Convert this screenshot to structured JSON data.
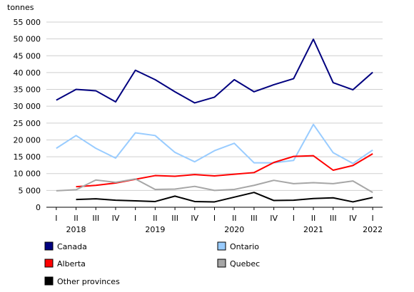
{
  "chart_data": {
    "type": "line",
    "ylabel": "tonnes",
    "ylim": [
      0,
      55000
    ],
    "yticks": [
      0,
      5000,
      10000,
      15000,
      20000,
      25000,
      30000,
      35000,
      40000,
      45000,
      50000,
      55000
    ],
    "ytick_labels": [
      "0",
      "5 000",
      "10 000",
      "15 000",
      "20 000",
      "25 000",
      "30 000",
      "35 000",
      "40 000",
      "45 000",
      "50 000",
      "55 000"
    ],
    "categories": [
      "I",
      "II",
      "III",
      "IV",
      "I",
      "II",
      "III",
      "IV",
      "I",
      "II",
      "III",
      "IV",
      "I",
      "II",
      "III",
      "IV",
      "I"
    ],
    "years": [
      {
        "label": "2018",
        "index": 1
      },
      {
        "label": "2019",
        "index": 5
      },
      {
        "label": "2020",
        "index": 9
      },
      {
        "label": "2021",
        "index": 13
      },
      {
        "label": "2022",
        "index": 16
      }
    ],
    "grid": true,
    "legend_position": "bottom",
    "series": [
      {
        "name": "Canada",
        "color": "#00007f",
        "values": [
          31800,
          35000,
          34600,
          31300,
          40700,
          37900,
          34300,
          31000,
          32700,
          37900,
          34300,
          36400,
          38200,
          49900,
          37000,
          34900,
          40100
        ]
      },
      {
        "name": "Ontario",
        "color": "#99ccff",
        "values": [
          17500,
          21300,
          17500,
          14600,
          22100,
          21300,
          16300,
          13500,
          16800,
          19000,
          13200,
          13200,
          13900,
          24600,
          16200,
          13000,
          17000
        ]
      },
      {
        "name": "Alberta",
        "color": "#ff0000",
        "values": [
          null,
          6100,
          6500,
          7200,
          8300,
          9400,
          9200,
          9700,
          9300,
          9800,
          10300,
          13300,
          15100,
          15300,
          11000,
          12400,
          15900
        ]
      },
      {
        "name": "Quebec",
        "color": "#a6a6a6",
        "values": [
          4900,
          5200,
          8100,
          7400,
          8400,
          5300,
          5400,
          6200,
          5000,
          5300,
          6500,
          8000,
          7000,
          7300,
          7000,
          7800,
          4400
        ]
      },
      {
        "name": "Other provinces",
        "color": "#000000",
        "values": [
          null,
          2300,
          2500,
          2100,
          1900,
          1700,
          3300,
          1700,
          1600,
          3000,
          4400,
          2000,
          2100,
          2600,
          2800,
          1600,
          2900
        ]
      }
    ]
  }
}
